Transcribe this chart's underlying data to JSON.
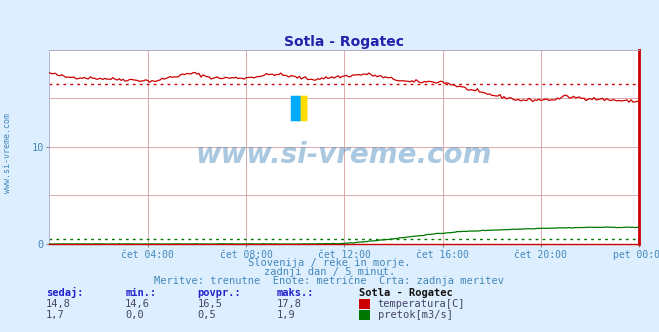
{
  "title": "Sotla - Rogatec",
  "bg_color": "#ddeeff",
  "plot_bg_color": "#ffffff",
  "xlim": [
    0,
    288
  ],
  "ylim": [
    0,
    20
  ],
  "yticks": [
    0,
    10
  ],
  "xtick_labels": [
    "čet 04:00",
    "čet 08:00",
    "čet 12:00",
    "čet 16:00",
    "čet 20:00",
    "pet 00:00"
  ],
  "xtick_positions": [
    48,
    96,
    144,
    192,
    240,
    288
  ],
  "temp_color": "#cc0000",
  "flow_color": "#007700",
  "temp_avg_line": 16.5,
  "flow_avg_line": 0.5,
  "watermark": "www.si-vreme.com",
  "watermark_color": "#4488bb",
  "subtitle1": "Slovenija / reke in morje.",
  "subtitle2": "zadnji dan / 5 minut.",
  "subtitle3": "Meritve: trenutne  Enote: metrične  Črta: zadnja meritev",
  "label_sedaj": "sedaj:",
  "label_min": "min.:",
  "label_povpr": "povpr.:",
  "label_maks": "maks.:",
  "label_station": "Sotla - Rogatec",
  "temp_sedaj": "14,8",
  "temp_min": "14,6",
  "temp_povpr": "16,5",
  "temp_maks": "17,8",
  "flow_sedaj": "1,7",
  "flow_min": "0,0",
  "flow_povpr": "0,5",
  "flow_maks": "1,9",
  "label_temp": "temperatura[C]",
  "label_flow": "pretok[m3/s]",
  "ylabel_left": "www.si-vreme.com",
  "grid_color": "#ddaaaa",
  "spine_color": "#cc0000"
}
